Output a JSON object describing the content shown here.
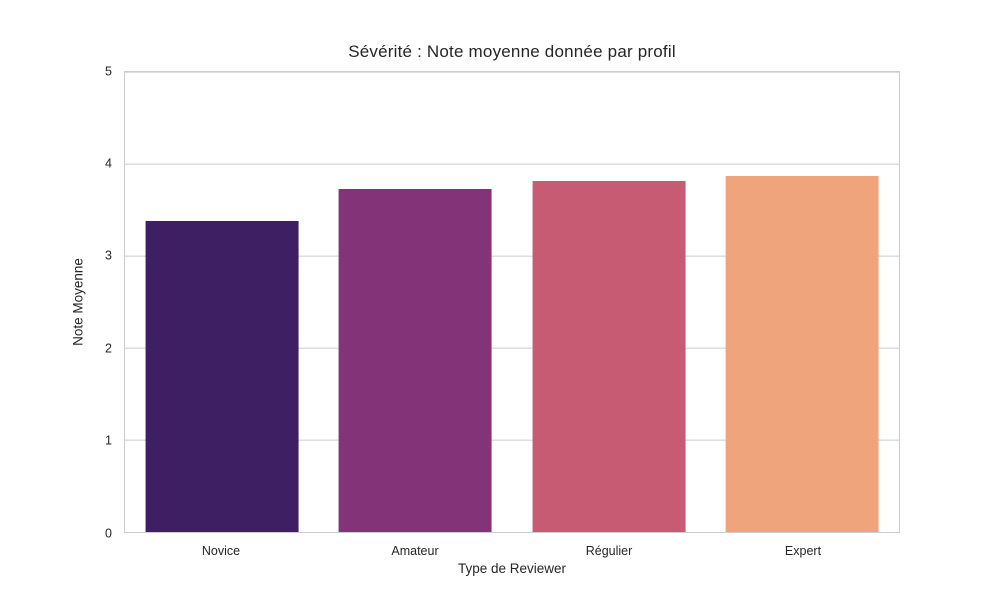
{
  "chart_data": {
    "type": "bar",
    "title": "Sévérité : Note moyenne donnée par profil",
    "xlabel": "Type de Reviewer",
    "ylabel": "Note Moyenne",
    "categories": [
      "Novice",
      "Amateur",
      "Régulier",
      "Expert"
    ],
    "values": [
      3.38,
      3.73,
      3.81,
      3.87
    ],
    "colors": [
      "#3E1F63",
      "#833378",
      "#C65B73",
      "#EFA47C"
    ],
    "ylim": [
      0,
      5
    ],
    "yticks": [
      0,
      1,
      2,
      3,
      4,
      5
    ],
    "grid": "horizontal",
    "grid_color": "#cccccc",
    "spine_color": "#cccccc",
    "text_color": "#262626",
    "legend": "none",
    "bar_rel_width": 0.79
  }
}
